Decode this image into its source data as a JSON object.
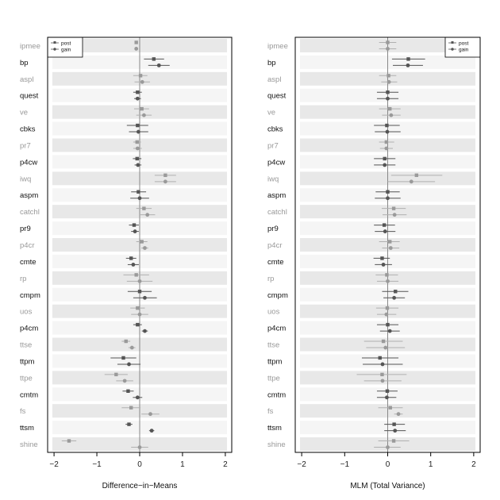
{
  "chart_data": [
    {
      "type": "dot-interval",
      "xlabel": "Difference−in−Means",
      "xlim": [
        -2.15,
        2.15
      ],
      "xticks": [
        "−2",
        "−1",
        "0",
        "1",
        "2"
      ],
      "xtick_values": [
        -2,
        -1,
        0,
        1,
        2
      ],
      "reference_line": 0,
      "legend": {
        "placement": "top-left",
        "entries": [
          "post",
          "gain"
        ]
      },
      "categories": [
        "ipmee",
        "bp",
        "aspl",
        "quest",
        "ve",
        "cbks",
        "pr7",
        "p4cw",
        "iwq",
        "aspm",
        "catchl",
        "pr9",
        "p4cr",
        "cmte",
        "rp",
        "cmpm",
        "uos",
        "p4cm",
        "ttse",
        "ttpm",
        "ttpe",
        "cmtm",
        "fs",
        "ttsm",
        "shine"
      ],
      "series": [
        {
          "name": "post",
          "est": [
            -0.08,
            0.33,
            0.02,
            -0.05,
            0.05,
            -0.05,
            -0.06,
            -0.06,
            0.6,
            -0.03,
            0.1,
            -0.13,
            0.05,
            -0.2,
            -0.08,
            0.0,
            -0.05,
            -0.05,
            -0.32,
            -0.38,
            -0.55,
            -0.27,
            -0.2,
            -0.25,
            -1.65
          ],
          "lo": [
            -0.12,
            0.1,
            -0.15,
            -0.15,
            -0.13,
            -0.3,
            -0.15,
            -0.16,
            0.35,
            -0.2,
            -0.08,
            -0.25,
            -0.08,
            -0.32,
            -0.38,
            -0.28,
            -0.22,
            -0.15,
            -0.42,
            -0.68,
            -0.82,
            -0.4,
            -0.42,
            -0.33,
            -1.82
          ],
          "hi": [
            -0.04,
            0.57,
            0.18,
            0.05,
            0.22,
            0.2,
            0.03,
            0.04,
            0.85,
            0.15,
            0.28,
            -0.02,
            0.18,
            -0.08,
            0.22,
            0.28,
            0.12,
            0.05,
            -0.22,
            -0.08,
            -0.28,
            -0.14,
            0.02,
            -0.17,
            -1.48
          ]
        },
        {
          "name": "gain",
          "est": [
            -0.08,
            0.45,
            0.06,
            -0.05,
            0.1,
            -0.03,
            -0.05,
            -0.04,
            0.6,
            0.0,
            0.18,
            -0.11,
            0.12,
            -0.15,
            0.0,
            0.12,
            0.0,
            0.12,
            -0.18,
            -0.25,
            -0.35,
            -0.05,
            0.25,
            0.28,
            0.0
          ],
          "lo": [
            -0.12,
            0.2,
            -0.12,
            -0.13,
            -0.08,
            -0.25,
            -0.15,
            -0.12,
            0.35,
            -0.22,
            0.0,
            -0.2,
            0.04,
            -0.28,
            -0.3,
            -0.15,
            -0.2,
            0.05,
            -0.26,
            -0.52,
            -0.55,
            -0.16,
            0.04,
            0.22,
            -0.2
          ],
          "hi": [
            -0.04,
            0.7,
            0.24,
            0.03,
            0.28,
            0.2,
            0.05,
            0.04,
            0.85,
            0.22,
            0.36,
            -0.02,
            0.2,
            -0.02,
            0.3,
            0.4,
            0.2,
            0.19,
            -0.1,
            0.02,
            -0.15,
            0.06,
            0.46,
            0.34,
            0.2
          ]
        }
      ]
    },
    {
      "type": "dot-interval",
      "xlabel": "MLM (Total Variance)",
      "xlim": [
        -2.15,
        2.15
      ],
      "xticks": [
        "−2",
        "−1",
        "0",
        "1",
        "2"
      ],
      "xtick_values": [
        -2,
        -1,
        0,
        1,
        2
      ],
      "reference_line": 0,
      "legend": {
        "placement": "top-right",
        "entries": [
          "post",
          "gain"
        ]
      },
      "categories": [
        "ipmee",
        "bp",
        "aspl",
        "quest",
        "ve",
        "cbks",
        "pr7",
        "p4cw",
        "iwq",
        "aspm",
        "catchl",
        "pr9",
        "p4cr",
        "cmte",
        "rp",
        "cmpm",
        "uos",
        "p4cm",
        "ttse",
        "ttpm",
        "ttpe",
        "cmtm",
        "fs",
        "ttsm",
        "shine"
      ],
      "series": [
        {
          "name": "post",
          "est": [
            0.0,
            0.48,
            0.02,
            0.0,
            0.05,
            -0.02,
            -0.03,
            -0.07,
            0.67,
            0.0,
            0.14,
            -0.08,
            0.05,
            -0.13,
            -0.02,
            0.18,
            -0.01,
            0.0,
            -0.1,
            -0.18,
            -0.13,
            -0.01,
            0.06,
            0.15,
            0.14
          ],
          "lo": [
            -0.2,
            0.1,
            -0.2,
            -0.25,
            -0.2,
            -0.32,
            -0.2,
            -0.32,
            0.08,
            -0.28,
            -0.14,
            -0.32,
            -0.2,
            -0.33,
            -0.28,
            -0.13,
            -0.27,
            -0.25,
            -0.55,
            -0.6,
            -0.72,
            -0.25,
            -0.22,
            -0.08,
            -0.22
          ],
          "hi": [
            0.2,
            0.87,
            0.2,
            0.25,
            0.3,
            0.28,
            0.15,
            0.18,
            1.27,
            0.28,
            0.42,
            0.17,
            0.28,
            0.05,
            0.24,
            0.48,
            0.25,
            0.25,
            0.35,
            0.25,
            0.44,
            0.23,
            0.35,
            0.4,
            0.5
          ]
        },
        {
          "name": "gain",
          "est": [
            0.0,
            0.47,
            0.03,
            0.0,
            0.08,
            -0.01,
            -0.03,
            -0.07,
            0.55,
            0.0,
            0.16,
            -0.06,
            0.07,
            -0.1,
            0.0,
            0.15,
            -0.03,
            0.05,
            -0.05,
            -0.12,
            -0.12,
            -0.02,
            0.25,
            0.17,
            0.0
          ],
          "lo": [
            -0.2,
            0.12,
            -0.15,
            -0.25,
            -0.13,
            -0.3,
            -0.18,
            -0.32,
            0.0,
            -0.3,
            -0.12,
            -0.3,
            -0.13,
            -0.3,
            -0.25,
            -0.1,
            -0.25,
            -0.18,
            -0.5,
            -0.58,
            -0.55,
            -0.25,
            0.15,
            -0.08,
            -0.32
          ],
          "hi": [
            0.2,
            0.82,
            0.22,
            0.25,
            0.3,
            0.3,
            0.12,
            0.18,
            1.1,
            0.3,
            0.44,
            0.18,
            0.27,
            0.1,
            0.25,
            0.4,
            0.2,
            0.28,
            0.4,
            0.35,
            0.32,
            0.2,
            0.35,
            0.42,
            0.3
          ]
        }
      ]
    }
  ]
}
